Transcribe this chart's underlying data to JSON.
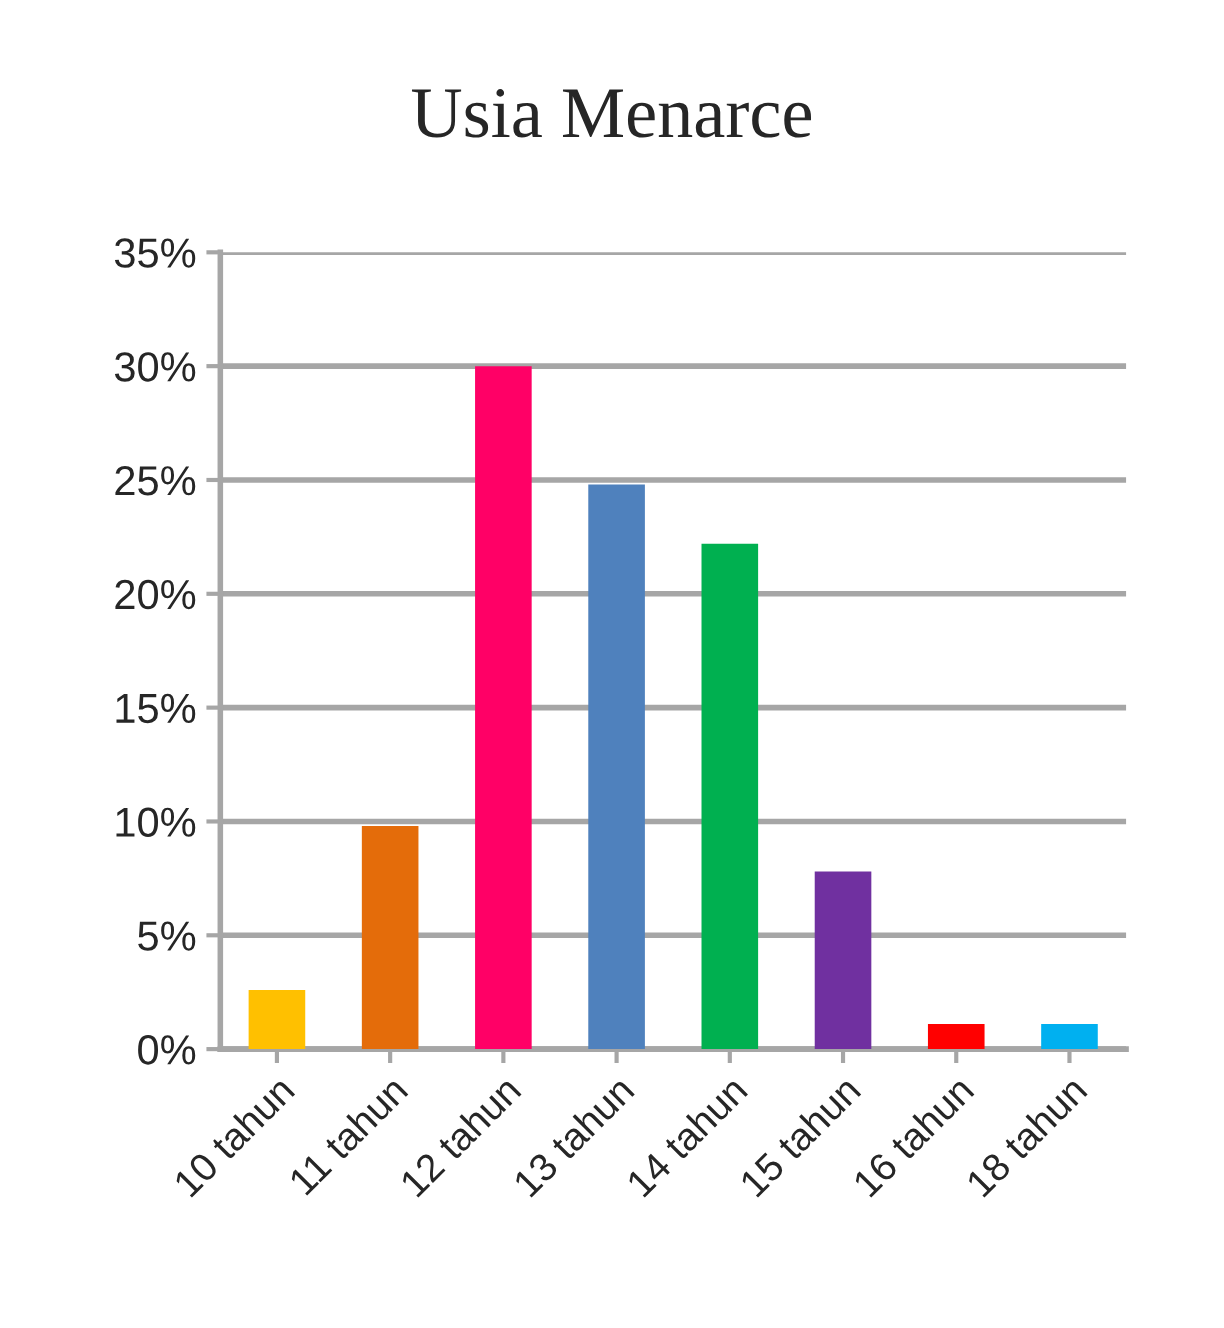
{
  "chart_data": {
    "type": "bar",
    "title": "Usia Menarce",
    "categories": [
      "10 tahun",
      "11 tahun",
      "12 tahun",
      "13 tahun",
      "14 tahun",
      "15 tahun",
      "16 tahun",
      "18 tahun"
    ],
    "values": [
      2.6,
      9.8,
      30.0,
      24.8,
      22.2,
      7.8,
      1.1,
      1.1
    ],
    "colors": [
      "#ffc000",
      "#e46c0a",
      "#ff0066",
      "#4f81bd",
      "#00b050",
      "#7030a0",
      "#ff0000",
      "#00b0f0"
    ],
    "ylim": [
      0,
      35
    ],
    "yticks": [
      {
        "value": 0,
        "label": "0%"
      },
      {
        "value": 5,
        "label": "5%"
      },
      {
        "value": 10,
        "label": "10%"
      },
      {
        "value": 15,
        "label": "15%"
      },
      {
        "value": 20,
        "label": "20%"
      },
      {
        "value": 25,
        "label": "25%"
      },
      {
        "value": 30,
        "label": "30%"
      },
      {
        "value": 35,
        "label": "35%"
      }
    ],
    "grid": "y",
    "legend": false
  }
}
